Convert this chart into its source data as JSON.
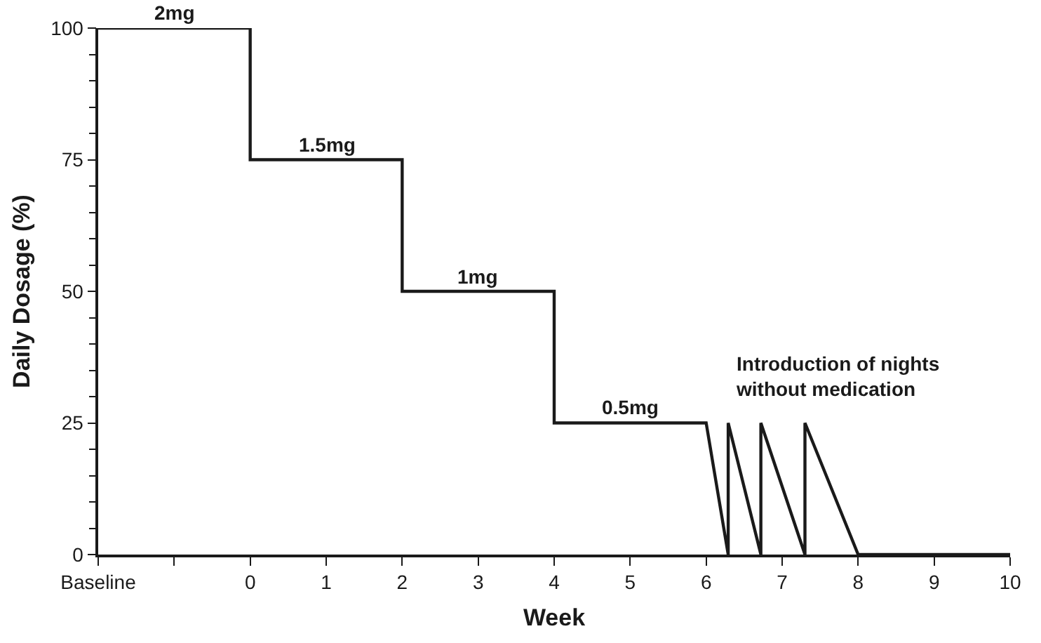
{
  "chart_data": {
    "type": "line",
    "xlabel": "Week",
    "ylabel": "Daily Dosage (%)",
    "x": [
      -2,
      0,
      0,
      2,
      2,
      4,
      4,
      6,
      6.29,
      6.29,
      6.72,
      6.72,
      7.3,
      7.3,
      8,
      10
    ],
    "series": [
      {
        "color": "#1a1a1a",
        "values": [
          100,
          100,
          75,
          75,
          50,
          50,
          25,
          25,
          0,
          25,
          0,
          25,
          0,
          25,
          0,
          0
        ]
      }
    ],
    "xlim": [
      -2,
      10
    ],
    "ylim": [
      0,
      100
    ],
    "xticks": [
      {
        "value": -2,
        "label": "Baseline"
      },
      {
        "value": -1,
        "label": null
      },
      0,
      1,
      2,
      3,
      4,
      5,
      6,
      7,
      8,
      9,
      10
    ],
    "yticks": [
      0,
      25,
      50,
      75,
      100
    ],
    "marker": "none",
    "line_style": "solid",
    "annotations": [
      {
        "text": "2mg",
        "x": -1,
        "y": 100
      },
      {
        "text": "1.5mg",
        "x": 1,
        "y": 75
      },
      {
        "text": "1mg",
        "x": 3,
        "y": 50
      },
      {
        "text": "0.5mg",
        "x": 5,
        "y": 25
      },
      {
        "text": "Introduction of nights\nwithout medication",
        "x": 7.3,
        "y": 25
      }
    ]
  }
}
